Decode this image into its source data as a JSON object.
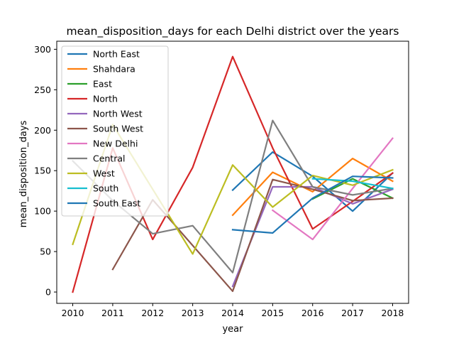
{
  "chart_data": {
    "type": "line",
    "title": "mean_disposition_days for each Delhi district over the years",
    "xlabel": "year",
    "ylabel": "mean_disposition_days",
    "x": [
      2010,
      2011,
      2012,
      2013,
      2014,
      2015,
      2016,
      2017,
      2018
    ],
    "xlim": [
      2009.6,
      2018.4
    ],
    "ylim": [
      -14,
      310
    ],
    "yticks": [
      0,
      50,
      100,
      150,
      200,
      250,
      300
    ],
    "grid": false,
    "legend_position": "top-left",
    "series": [
      {
        "name": "North East",
        "color": "#1f77b4",
        "points": [
          [
            2014,
            126
          ],
          [
            2015,
            173
          ],
          [
            2016,
            143
          ],
          [
            2017,
            100
          ],
          [
            2018,
            147
          ]
        ]
      },
      {
        "name": "Shahdara",
        "color": "#ff7f0e",
        "points": [
          [
            2014,
            95
          ],
          [
            2015,
            148
          ],
          [
            2016,
            124
          ],
          [
            2017,
            165
          ],
          [
            2018,
            137
          ]
        ]
      },
      {
        "name": "East",
        "color": "#2ca02c",
        "points": [
          [
            2016,
            115
          ],
          [
            2017,
            140
          ],
          [
            2018,
            116
          ]
        ]
      },
      {
        "name": "North",
        "color": "#d62728",
        "points": [
          [
            2010,
            0
          ],
          [
            2011,
            178
          ],
          [
            2012,
            65
          ],
          [
            2013,
            154
          ],
          [
            2014,
            291
          ],
          [
            2015,
            178
          ],
          [
            2016,
            78
          ],
          [
            2017,
            112
          ],
          [
            2018,
            147
          ]
        ]
      },
      {
        "name": "North West",
        "color": "#9467bd",
        "points": [
          [
            2014,
            7
          ],
          [
            2015,
            130
          ],
          [
            2016,
            130
          ],
          [
            2017,
            109
          ],
          [
            2018,
            127
          ]
        ]
      },
      {
        "name": "South West",
        "color": "#8c564b",
        "points": [
          [
            2011,
            28
          ],
          [
            2012,
            114
          ],
          [
            2014,
            1
          ],
          [
            2015,
            139
          ],
          [
            2016,
            127
          ],
          [
            2017,
            113
          ],
          [
            2018,
            116
          ]
        ]
      },
      {
        "name": "New Delhi",
        "color": "#e377c2",
        "points": [
          [
            2015,
            101
          ],
          [
            2016,
            65
          ],
          [
            2017,
            128
          ],
          [
            2018,
            190
          ]
        ]
      },
      {
        "name": "Central",
        "color": "#7f7f7f",
        "points": [
          [
            2010,
            162
          ],
          [
            2011,
            113
          ],
          [
            2012,
            72
          ],
          [
            2013,
            82
          ],
          [
            2014,
            24
          ],
          [
            2015,
            212
          ],
          [
            2016,
            130
          ],
          [
            2017,
            120
          ],
          [
            2018,
            128
          ]
        ]
      },
      {
        "name": "West",
        "color": "#bcbd22",
        "points": [
          [
            2010,
            59
          ],
          [
            2011,
            207
          ],
          [
            2013,
            47
          ],
          [
            2014,
            157
          ],
          [
            2015,
            105
          ],
          [
            2016,
            144
          ],
          [
            2017,
            132
          ],
          [
            2018,
            151
          ]
        ]
      },
      {
        "name": "South",
        "color": "#17becf",
        "points": [
          [
            2016,
            140
          ],
          [
            2017,
            137
          ],
          [
            2018,
            128
          ]
        ]
      },
      {
        "name": "South East",
        "color": "#1f77b4",
        "points": [
          [
            2014,
            77
          ],
          [
            2015,
            73
          ],
          [
            2016,
            116
          ],
          [
            2017,
            143
          ],
          [
            2018,
            141
          ]
        ]
      }
    ]
  }
}
